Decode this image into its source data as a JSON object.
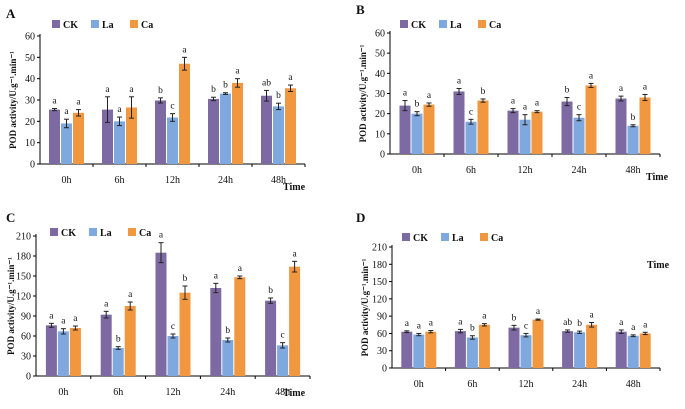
{
  "legend_labels": [
    "CK",
    "La",
    "Ca"
  ],
  "colors": {
    "CK": "#7d6aa3",
    "La": "#7fa9de",
    "Ca": "#f1973f",
    "axis": "#000000",
    "error": "#222222"
  },
  "chart_data": [
    {
      "id": "A",
      "type": "bar",
      "title": "",
      "xlabel": "Time",
      "ylabel": "POD activity/U.g⁻¹.min⁻¹",
      "ylim": [
        0,
        60
      ],
      "yticks": [
        0,
        10,
        20,
        30,
        40,
        50,
        60
      ],
      "categories": [
        "0h",
        "6h",
        "12h",
        "24h",
        "48h"
      ],
      "series": [
        {
          "name": "CK",
          "values": [
            25.5,
            25.5,
            29.8,
            30.5,
            32.0
          ],
          "errors": [
            0.5,
            6.0,
            1.2,
            0.8,
            2.5
          ],
          "letters": [
            "a",
            "a",
            "b",
            "b",
            "ab"
          ]
        },
        {
          "name": "La",
          "values": [
            19.0,
            20.0,
            21.8,
            33.0,
            27.0
          ],
          "errors": [
            2.0,
            2.0,
            1.8,
            0.4,
            1.5
          ],
          "letters": [
            "a",
            "a",
            "c",
            "b",
            "b"
          ]
        },
        {
          "name": "Ca",
          "values": [
            24.0,
            26.5,
            47.0,
            38.0,
            35.5
          ],
          "errors": [
            1.5,
            5.0,
            3.0,
            2.0,
            1.5
          ],
          "letters": [
            "a",
            "a",
            "a",
            "a",
            "a"
          ]
        }
      ]
    },
    {
      "id": "B",
      "type": "bar",
      "title": "",
      "xlabel": "Time",
      "ylabel": "POD activity/U.g⁻¹.min⁻¹",
      "ylim": [
        0,
        60
      ],
      "yticks": [
        0,
        10,
        20,
        30,
        40,
        50,
        60
      ],
      "categories": [
        "0h",
        "6h",
        "12h",
        "24h",
        "48h"
      ],
      "series": [
        {
          "name": "CK",
          "values": [
            24.0,
            31.0,
            21.5,
            26.0,
            27.5
          ],
          "errors": [
            2.5,
            1.5,
            1.0,
            2.0,
            1.2
          ],
          "letters": [
            "a",
            "a",
            "a",
            "b",
            "a"
          ]
        },
        {
          "name": "La",
          "values": [
            20.0,
            16.0,
            17.0,
            18.0,
            14.0
          ],
          "errors": [
            1.0,
            1.2,
            2.5,
            1.5,
            0.5
          ],
          "letters": [
            "b",
            "c",
            "a",
            "c",
            "b"
          ]
        },
        {
          "name": "Ca",
          "values": [
            24.5,
            26.5,
            21.0,
            34.0,
            28.0
          ],
          "errors": [
            0.8,
            0.8,
            0.5,
            1.0,
            1.5
          ],
          "letters": [
            "a",
            "b",
            "a",
            "a",
            "a"
          ]
        }
      ]
    },
    {
      "id": "C",
      "type": "bar",
      "title": "",
      "xlabel": "Time",
      "ylabel": "POD activity/U.g⁻¹.min⁻¹",
      "ylim": [
        0,
        210
      ],
      "yticks": [
        0,
        30,
        60,
        90,
        120,
        150,
        180,
        210
      ],
      "categories": [
        "0h",
        "6h",
        "12h",
        "24h",
        "48h"
      ],
      "series": [
        {
          "name": "CK",
          "values": [
            76,
            92,
            185,
            132,
            113
          ],
          "errors": [
            3,
            5,
            15,
            7,
            4
          ],
          "letters": [
            "a",
            "a",
            "a",
            "a",
            "b"
          ]
        },
        {
          "name": "La",
          "values": [
            67,
            42,
            60,
            54,
            46
          ],
          "errors": [
            4,
            2,
            3,
            3,
            4
          ],
          "letters": [
            "a",
            "b",
            "c",
            "b",
            "c"
          ]
        },
        {
          "name": "Ca",
          "values": [
            72,
            105,
            125,
            148,
            164
          ],
          "errors": [
            3,
            6,
            10,
            2,
            8
          ],
          "letters": [
            "a",
            "a",
            "b",
            "a",
            "a"
          ]
        }
      ]
    },
    {
      "id": "D",
      "type": "bar",
      "title": "",
      "xlabel": "Time",
      "ylabel": "POD activity/U.g⁻¹.min⁻¹",
      "ylim": [
        0,
        210
      ],
      "yticks": [
        0,
        30,
        60,
        90,
        120,
        150,
        180,
        210
      ],
      "categories": [
        "0h",
        "6h",
        "12h",
        "24h",
        "48h"
      ],
      "series": [
        {
          "name": "CK",
          "values": [
            63,
            64,
            70,
            64,
            63
          ],
          "errors": [
            1.5,
            3,
            4,
            2,
            3
          ],
          "letters": [
            "a",
            "a",
            "b",
            "ab",
            "a"
          ]
        },
        {
          "name": "La",
          "values": [
            58,
            53,
            57,
            62,
            56
          ],
          "errors": [
            2,
            3,
            3,
            2,
            1.5
          ],
          "letters": [
            "a",
            "b",
            "c",
            "b",
            "a"
          ]
        },
        {
          "name": "Ca",
          "values": [
            63,
            75,
            84,
            75,
            60
          ],
          "errors": [
            2,
            2,
            1,
            4,
            2
          ],
          "letters": [
            "a",
            "a",
            "a",
            "a",
            "a"
          ]
        }
      ]
    }
  ]
}
